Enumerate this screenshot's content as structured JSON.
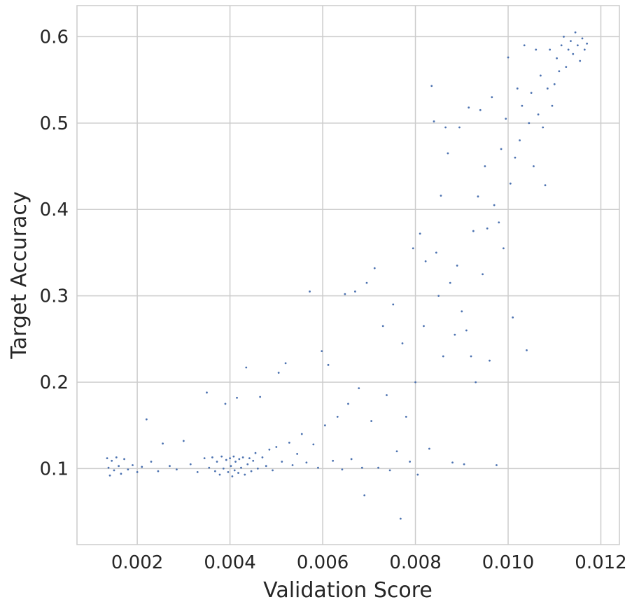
{
  "chart_data": {
    "type": "scatter",
    "title": "",
    "xlabel": "Validation Score",
    "ylabel": "Target Accuracy",
    "xlim": [
      0.0007,
      0.0124
    ],
    "ylim": [
      0.012,
      0.636
    ],
    "x_ticks": [
      0.002,
      0.004,
      0.006,
      0.008,
      0.01,
      0.012
    ],
    "x_tick_labels": [
      "0.002",
      "0.004",
      "0.006",
      "0.008",
      "0.010",
      "0.012"
    ],
    "y_ticks": [
      0.1,
      0.2,
      0.3,
      0.4,
      0.5,
      0.6
    ],
    "y_tick_labels": [
      "0.1",
      "0.2",
      "0.3",
      "0.4",
      "0.5",
      "0.6"
    ],
    "grid": true,
    "marker_color": "#4c72b0",
    "series": [
      {
        "values": [
          [
            0.00135,
            0.112
          ],
          [
            0.00138,
            0.101
          ],
          [
            0.00141,
            0.092
          ],
          [
            0.00145,
            0.109
          ],
          [
            0.0015,
            0.098
          ],
          [
            0.00155,
            0.113
          ],
          [
            0.0016,
            0.103
          ],
          [
            0.00165,
            0.094
          ],
          [
            0.00172,
            0.111
          ],
          [
            0.0018,
            0.099
          ],
          [
            0.0019,
            0.104
          ],
          [
            0.002,
            0.096
          ],
          [
            0.0021,
            0.102
          ],
          [
            0.0022,
            0.157
          ],
          [
            0.0023,
            0.108
          ],
          [
            0.00245,
            0.097
          ],
          [
            0.00255,
            0.129
          ],
          [
            0.0027,
            0.103
          ],
          [
            0.00285,
            0.099
          ],
          [
            0.003,
            0.132
          ],
          [
            0.00315,
            0.105
          ],
          [
            0.0033,
            0.096
          ],
          [
            0.00345,
            0.112
          ],
          [
            0.0035,
            0.188
          ],
          [
            0.00355,
            0.101
          ],
          [
            0.00362,
            0.113
          ],
          [
            0.00368,
            0.097
          ],
          [
            0.00372,
            0.108
          ],
          [
            0.00378,
            0.093
          ],
          [
            0.00382,
            0.114
          ],
          [
            0.00386,
            0.1
          ],
          [
            0.0039,
            0.175
          ],
          [
            0.00392,
            0.11
          ],
          [
            0.00396,
            0.096
          ],
          [
            0.004,
            0.112
          ],
          [
            0.00402,
            0.103
          ],
          [
            0.00405,
            0.091
          ],
          [
            0.00408,
            0.114
          ],
          [
            0.0041,
            0.098
          ],
          [
            0.00412,
            0.108
          ],
          [
            0.00415,
            0.182
          ],
          [
            0.00418,
            0.095
          ],
          [
            0.0042,
            0.111
          ],
          [
            0.00424,
            0.101
          ],
          [
            0.00428,
            0.113
          ],
          [
            0.00432,
            0.093
          ],
          [
            0.00435,
            0.217
          ],
          [
            0.00438,
            0.105
          ],
          [
            0.00442,
            0.112
          ],
          [
            0.00446,
            0.097
          ],
          [
            0.0045,
            0.109
          ],
          [
            0.00455,
            0.118
          ],
          [
            0.0046,
            0.1
          ],
          [
            0.00465,
            0.183
          ],
          [
            0.0047,
            0.113
          ],
          [
            0.00478,
            0.103
          ],
          [
            0.00485,
            0.122
          ],
          [
            0.00492,
            0.098
          ],
          [
            0.005,
            0.125
          ],
          [
            0.00505,
            0.211
          ],
          [
            0.00512,
            0.108
          ],
          [
            0.0052,
            0.222
          ],
          [
            0.00528,
            0.13
          ],
          [
            0.00535,
            0.104
          ],
          [
            0.00545,
            0.117
          ],
          [
            0.00555,
            0.14
          ],
          [
            0.00565,
            0.107
          ],
          [
            0.00572,
            0.305
          ],
          [
            0.0058,
            0.128
          ],
          [
            0.0059,
            0.101
          ],
          [
            0.00598,
            0.236
          ],
          [
            0.00605,
            0.15
          ],
          [
            0.00612,
            0.22
          ],
          [
            0.00622,
            0.109
          ],
          [
            0.00632,
            0.16
          ],
          [
            0.00642,
            0.099
          ],
          [
            0.00648,
            0.302
          ],
          [
            0.00655,
            0.175
          ],
          [
            0.00662,
            0.111
          ],
          [
            0.0067,
            0.305
          ],
          [
            0.00678,
            0.193
          ],
          [
            0.00685,
            0.101
          ],
          [
            0.0069,
            0.069
          ],
          [
            0.00695,
            0.315
          ],
          [
            0.00705,
            0.155
          ],
          [
            0.00712,
            0.332
          ],
          [
            0.0072,
            0.101
          ],
          [
            0.0073,
            0.265
          ],
          [
            0.00738,
            0.185
          ],
          [
            0.00745,
            0.098
          ],
          [
            0.00752,
            0.29
          ],
          [
            0.0076,
            0.12
          ],
          [
            0.00768,
            0.042
          ],
          [
            0.00772,
            0.245
          ],
          [
            0.0078,
            0.16
          ],
          [
            0.00788,
            0.108
          ],
          [
            0.00795,
            0.355
          ],
          [
            0.008,
            0.2
          ],
          [
            0.00805,
            0.093
          ],
          [
            0.0081,
            0.372
          ],
          [
            0.00818,
            0.265
          ],
          [
            0.00822,
            0.34
          ],
          [
            0.0083,
            0.123
          ],
          [
            0.00835,
            0.543
          ],
          [
            0.0084,
            0.502
          ],
          [
            0.00845,
            0.35
          ],
          [
            0.0085,
            0.3
          ],
          [
            0.00855,
            0.416
          ],
          [
            0.0086,
            0.23
          ],
          [
            0.00865,
            0.495
          ],
          [
            0.0087,
            0.465
          ],
          [
            0.00875,
            0.315
          ],
          [
            0.0088,
            0.107
          ],
          [
            0.00885,
            0.255
          ],
          [
            0.0089,
            0.335
          ],
          [
            0.00895,
            0.495
          ],
          [
            0.009,
            0.282
          ],
          [
            0.00905,
            0.105
          ],
          [
            0.0091,
            0.26
          ],
          [
            0.00915,
            0.518
          ],
          [
            0.0092,
            0.23
          ],
          [
            0.00925,
            0.375
          ],
          [
            0.0093,
            0.2
          ],
          [
            0.00935,
            0.415
          ],
          [
            0.0094,
            0.515
          ],
          [
            0.00945,
            0.325
          ],
          [
            0.0095,
            0.45
          ],
          [
            0.00955,
            0.378
          ],
          [
            0.0096,
            0.225
          ],
          [
            0.00965,
            0.53
          ],
          [
            0.0097,
            0.405
          ],
          [
            0.00975,
            0.104
          ],
          [
            0.0098,
            0.385
          ],
          [
            0.00985,
            0.47
          ],
          [
            0.0099,
            0.355
          ],
          [
            0.00995,
            0.505
          ],
          [
            0.01,
            0.576
          ],
          [
            0.01005,
            0.43
          ],
          [
            0.0101,
            0.275
          ],
          [
            0.01015,
            0.46
          ],
          [
            0.0102,
            0.54
          ],
          [
            0.01025,
            0.48
          ],
          [
            0.0103,
            0.52
          ],
          [
            0.01035,
            0.59
          ],
          [
            0.0104,
            0.237
          ],
          [
            0.01045,
            0.5
          ],
          [
            0.0105,
            0.535
          ],
          [
            0.01055,
            0.45
          ],
          [
            0.0106,
            0.585
          ],
          [
            0.01065,
            0.51
          ],
          [
            0.0107,
            0.555
          ],
          [
            0.01075,
            0.495
          ],
          [
            0.0108,
            0.428
          ],
          [
            0.01085,
            0.54
          ],
          [
            0.0109,
            0.585
          ],
          [
            0.01095,
            0.52
          ],
          [
            0.011,
            0.545
          ],
          [
            0.01105,
            0.575
          ],
          [
            0.0111,
            0.56
          ],
          [
            0.01115,
            0.59
          ],
          [
            0.0112,
            0.6
          ],
          [
            0.01125,
            0.565
          ],
          [
            0.0113,
            0.585
          ],
          [
            0.01135,
            0.595
          ],
          [
            0.0114,
            0.58
          ],
          [
            0.01145,
            0.605
          ],
          [
            0.0115,
            0.59
          ],
          [
            0.01155,
            0.572
          ],
          [
            0.0116,
            0.598
          ],
          [
            0.01165,
            0.585
          ],
          [
            0.0117,
            0.592
          ]
        ]
      }
    ]
  }
}
